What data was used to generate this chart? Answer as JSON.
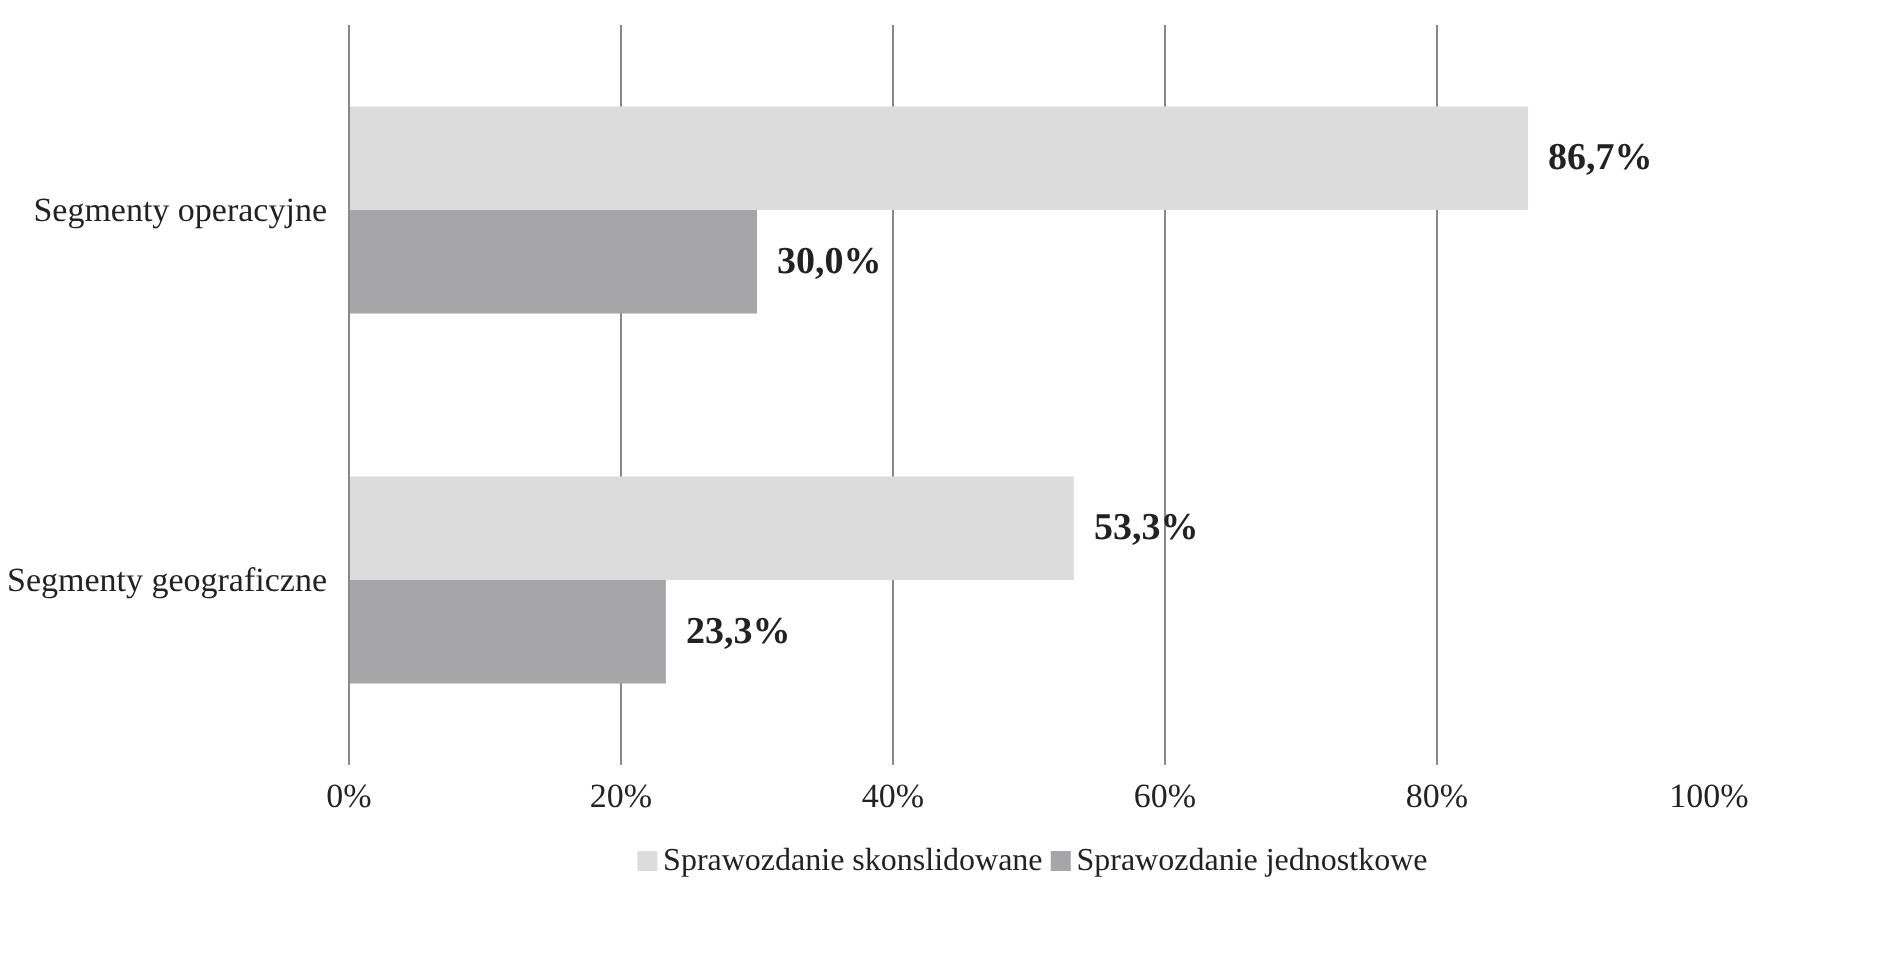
{
  "chart_data": {
    "type": "bar",
    "orientation": "horizontal",
    "categories": [
      "Segmenty operacyjne",
      "Segmenty geograficzne"
    ],
    "series": [
      {
        "name": "Sprawozdanie skonslidowane",
        "color": "#dcdcdc",
        "values": [
          86.7,
          53.3
        ],
        "value_labels": [
          "86,7%",
          "53,3%"
        ]
      },
      {
        "name": "Sprawozdanie jednostkowe",
        "color": "#a6a6a8",
        "values": [
          30.0,
          23.3
        ],
        "value_labels": [
          "30,0%",
          "23,3%"
        ]
      }
    ],
    "xlim": [
      0,
      100
    ],
    "xticks": [
      {
        "value": 0,
        "label": "0%"
      },
      {
        "value": 20,
        "label": "20%"
      },
      {
        "value": 40,
        "label": "40%"
      },
      {
        "value": 60,
        "label": "60%"
      },
      {
        "value": 80,
        "label": "80%"
      },
      {
        "value": 100,
        "label": "100%"
      }
    ],
    "grid": "x",
    "legend": "bottom"
  }
}
